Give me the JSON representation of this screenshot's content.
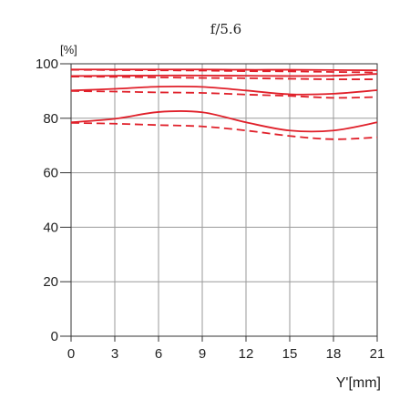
{
  "chart_data": {
    "type": "line",
    "title": "f/5.6",
    "y_unit": "[%]",
    "xlabel": "Y'[mm]",
    "xlim": [
      0,
      21
    ],
    "ylim": [
      0,
      100
    ],
    "x_ticks": [
      0,
      3,
      6,
      9,
      12,
      15,
      18,
      21
    ],
    "y_ticks": [
      0,
      20,
      40,
      60,
      80,
      100
    ],
    "grid": true,
    "colors": {
      "series": "#e0202a",
      "grid": "#9a9a9a",
      "axis": "#333333",
      "text": "#222222"
    },
    "series": [
      {
        "style": "solid",
        "x": [
          0,
          3,
          6,
          9,
          12,
          15,
          18,
          21
        ],
        "y": [
          97.9,
          97.9,
          97.9,
          97.9,
          97.8,
          97.8,
          97.7,
          97.6
        ]
      },
      {
        "style": "dashed",
        "x": [
          0,
          3,
          6,
          9,
          12,
          15,
          18,
          21
        ],
        "y": [
          97.8,
          97.7,
          97.6,
          97.5,
          97.3,
          97.2,
          97.0,
          96.8
        ]
      },
      {
        "style": "solid",
        "x": [
          0,
          3,
          6,
          9,
          12,
          15,
          18,
          21
        ],
        "y": [
          95.5,
          95.6,
          95.7,
          95.7,
          95.6,
          95.5,
          95.6,
          96.3
        ]
      },
      {
        "style": "dashed",
        "x": [
          0,
          3,
          6,
          9,
          12,
          15,
          18,
          21
        ],
        "y": [
          95.3,
          95.2,
          95.0,
          94.8,
          94.7,
          94.5,
          94.3,
          94.3
        ]
      },
      {
        "style": "solid",
        "x": [
          0,
          3,
          6,
          9,
          12,
          15,
          18,
          21
        ],
        "y": [
          90.2,
          90.8,
          91.6,
          91.5,
          90.2,
          88.8,
          89.0,
          90.3
        ]
      },
      {
        "style": "dashed",
        "x": [
          0,
          3,
          6,
          9,
          12,
          15,
          18,
          21
        ],
        "y": [
          90.0,
          89.8,
          89.5,
          89.3,
          88.7,
          88.2,
          87.5,
          87.8
        ]
      },
      {
        "style": "solid",
        "x": [
          0,
          3,
          6,
          9,
          12,
          15,
          18,
          21
        ],
        "y": [
          78.5,
          79.8,
          82.3,
          82.2,
          78.5,
          75.5,
          75.5,
          78.5
        ]
      },
      {
        "style": "dashed",
        "x": [
          0,
          3,
          6,
          9,
          12,
          15,
          18,
          21
        ],
        "y": [
          78.3,
          78.0,
          77.5,
          77.0,
          75.5,
          73.5,
          72.3,
          73.0
        ]
      }
    ]
  }
}
